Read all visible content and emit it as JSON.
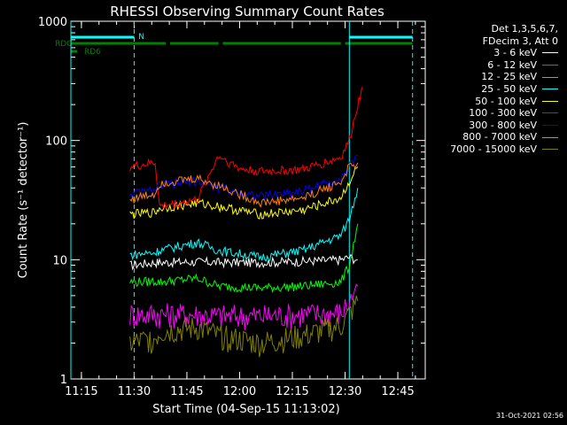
{
  "chart_data": {
    "type": "line",
    "title": "RHESSI Observing Summary Count Rates",
    "xlabel": "Start Time (04-Sep-15 11:13:02)",
    "ylabel": "Count Rate (s⁻¹ detector⁻¹)",
    "y_scale": "log",
    "ylim": [
      1,
      1000
    ],
    "xlim": [
      11.2,
      12.88
    ],
    "x_ticks": [
      "11:15",
      "11:30",
      "11:45",
      "12:00",
      "12:15",
      "12:30",
      "12:45"
    ],
    "y_ticks": [
      "1",
      "10",
      "100",
      "1000"
    ],
    "grid": false,
    "legend_position": "top-right",
    "legend_header": [
      "Det 1,3,5,6,7,",
      "FDecim 3, Att 0"
    ],
    "series": [
      {
        "name": "3 - 6 keV",
        "color": "#ffffff",
        "x": [
          11.48,
          11.6,
          11.62,
          11.8,
          11.9,
          12.1,
          12.3,
          12.48,
          12.52,
          12.56
        ],
        "values": [
          9,
          9.5,
          9.5,
          9.6,
          9.5,
          9.5,
          9.7,
          10,
          10.5,
          10
        ]
      },
      {
        "name": "6 - 12 keV",
        "color": "#ff00ff",
        "x": [
          11.48,
          11.6,
          11.62,
          11.8,
          11.9,
          12.1,
          12.3,
          12.48,
          12.52,
          12.56
        ],
        "values": [
          3.5,
          3.5,
          3.5,
          3.5,
          3.4,
          3.4,
          3.5,
          3.6,
          4.5,
          6
        ]
      },
      {
        "name": "12 - 25 keV",
        "color": "#00ff00",
        "x": [
          11.48,
          11.6,
          11.62,
          11.8,
          11.9,
          12.1,
          12.3,
          12.48,
          12.52,
          12.56
        ],
        "values": [
          6.5,
          6.6,
          6.5,
          7,
          6,
          5.8,
          6,
          6.5,
          9,
          20
        ]
      },
      {
        "name": "25 - 50 keV",
        "color": "#00ffff",
        "x": [
          11.48,
          11.6,
          11.62,
          11.8,
          11.9,
          12.1,
          12.3,
          12.48,
          12.52,
          12.56
        ],
        "values": [
          11,
          11.5,
          12,
          14,
          12,
          10.5,
          12,
          16,
          22,
          40
        ]
      },
      {
        "name": "50 - 100 keV",
        "color": "#ffff00",
        "x": [
          11.48,
          11.6,
          11.62,
          11.8,
          11.9,
          12.1,
          12.3,
          12.48,
          12.52,
          12.56
        ],
        "values": [
          24,
          25,
          27,
          30,
          28,
          24,
          26,
          33,
          45,
          60
        ]
      },
      {
        "name": "100 - 300 keV",
        "color": "#ff0000",
        "x": [
          11.48,
          11.6,
          11.62,
          11.8,
          11.9,
          12.0,
          12.1,
          12.3,
          12.48,
          12.52,
          12.56,
          12.58
        ],
        "values": [
          60,
          65,
          28,
          32,
          75,
          58,
          55,
          57,
          72,
          100,
          200,
          280
        ]
      },
      {
        "name": "300 - 800 keV",
        "color": "#0000ff",
        "x": [
          11.48,
          11.6,
          11.62,
          11.8,
          11.9,
          12.1,
          12.3,
          12.48,
          12.52,
          12.56
        ],
        "values": [
          36,
          38,
          42,
          46,
          40,
          34,
          38,
          48,
          60,
          75
        ]
      },
      {
        "name": "800 - 7000 keV",
        "color": "#ff8000",
        "x": [
          11.48,
          11.6,
          11.62,
          11.8,
          11.9,
          12.1,
          12.3,
          12.48,
          12.52,
          12.56
        ],
        "values": [
          32,
          36,
          44,
          48,
          42,
          30,
          33,
          45,
          60,
          65
        ]
      },
      {
        "name": "7000 - 15000 keV",
        "color": "#808000",
        "x": [
          11.48,
          11.6,
          11.62,
          11.8,
          11.9,
          12.1,
          12.3,
          12.48,
          12.52,
          12.56
        ],
        "values": [
          2.0,
          2.2,
          2.5,
          2.7,
          2.3,
          2.0,
          2.3,
          2.8,
          3.5,
          4.5
        ]
      }
    ],
    "flags": [
      {
        "name": "N",
        "color": "#00ffff",
        "segments": [
          [
            11.2,
            11.5
          ],
          [
            12.52,
            12.82
          ]
        ]
      },
      {
        "name": "RDC",
        "color": "#008000",
        "segments": [
          [
            11.2,
            11.65
          ],
          [
            11.67,
            11.9
          ],
          [
            11.92,
            12.48
          ],
          [
            12.5,
            12.82
          ]
        ]
      },
      {
        "name": "RD6",
        "color": "#008000",
        "segments": [
          [
            11.2,
            11.23
          ]
        ]
      }
    ],
    "vlines": [
      {
        "x": 11.2,
        "color": "#00ffff",
        "style": "solid"
      },
      {
        "x": 11.5,
        "color": "#00ffff",
        "style": "dashed"
      },
      {
        "x": 12.52,
        "color": "#00ffff",
        "style": "solid"
      },
      {
        "x": 12.82,
        "color": "#00ffff",
        "style": "dashed"
      }
    ]
  },
  "timestamp": "31-Oct-2021 02:56"
}
